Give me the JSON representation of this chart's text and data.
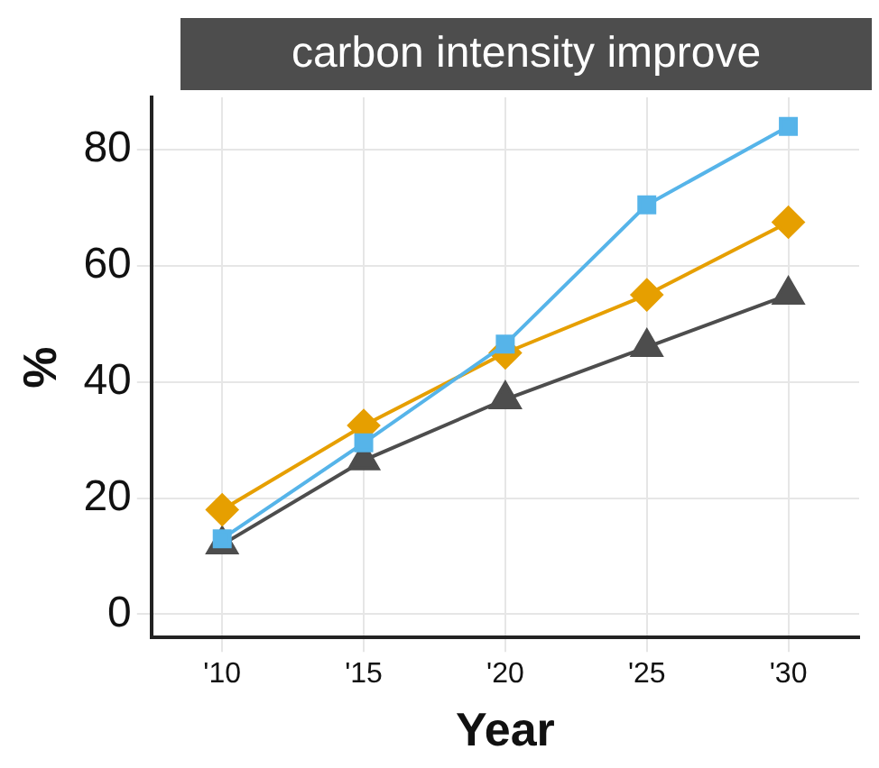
{
  "chart_data": {
    "type": "line",
    "title": "carbon intensity improve",
    "xlabel": "Year",
    "ylabel": "%",
    "categories": [
      "'10",
      "'15",
      "'20",
      "'25",
      "'30"
    ],
    "series": [
      {
        "color": "#56b4e9",
        "marker": "square",
        "values": [
          13,
          29.5,
          46.5,
          70.5,
          84
        ]
      },
      {
        "color": "#e69f00",
        "marker": "diamond",
        "values": [
          18,
          32.5,
          45,
          55,
          67.5
        ]
      },
      {
        "color": "#4d4d4d",
        "marker": "triangle",
        "values": [
          12,
          26.5,
          37,
          46,
          55
        ]
      }
    ],
    "ylim": [
      -4,
      89
    ],
    "yticks": [
      0,
      20,
      40,
      60,
      80
    ],
    "grid": true,
    "legend": false
  }
}
